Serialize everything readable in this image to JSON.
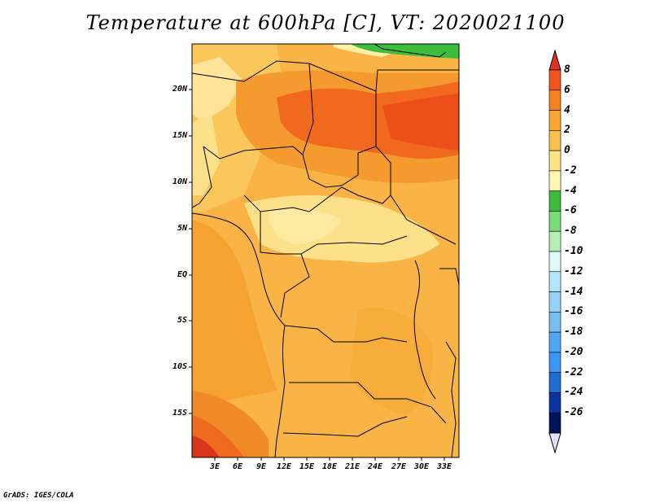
{
  "title": "Temperature at 600hPa [C], VT: 2020021100",
  "credit": "GrADS: IGES/COLA",
  "map": {
    "lat_labels": [
      "20N",
      "15N",
      "10N",
      "5N",
      "EQ",
      "5S",
      "10S",
      "15S"
    ],
    "lon_labels": [
      "3E",
      "6E",
      "9E",
      "12E",
      "15E",
      "18E",
      "21E",
      "24E",
      "27E",
      "30E",
      "33E"
    ]
  },
  "colorbar": {
    "labels": [
      "8",
      "6",
      "4",
      "2",
      "0",
      "-2",
      "-4",
      "-6",
      "-8",
      "-10",
      "-12",
      "-14",
      "-16",
      "-18",
      "-20",
      "-22",
      "-24",
      "-26"
    ],
    "colors": [
      "#e1321e",
      "#f0551e",
      "#f5821e",
      "#f9a530",
      "#fac050",
      "#fde384",
      "#fff8b4",
      "#3cbe3c",
      "#78dc78",
      "#b4f0b4",
      "#e0fafa",
      "#b4e6fa",
      "#96d2fa",
      "#78bef0",
      "#50a5f5",
      "#3c96f5",
      "#1e6ed2",
      "#0a32a0",
      "#00145a",
      "#e0e0f8"
    ]
  }
}
